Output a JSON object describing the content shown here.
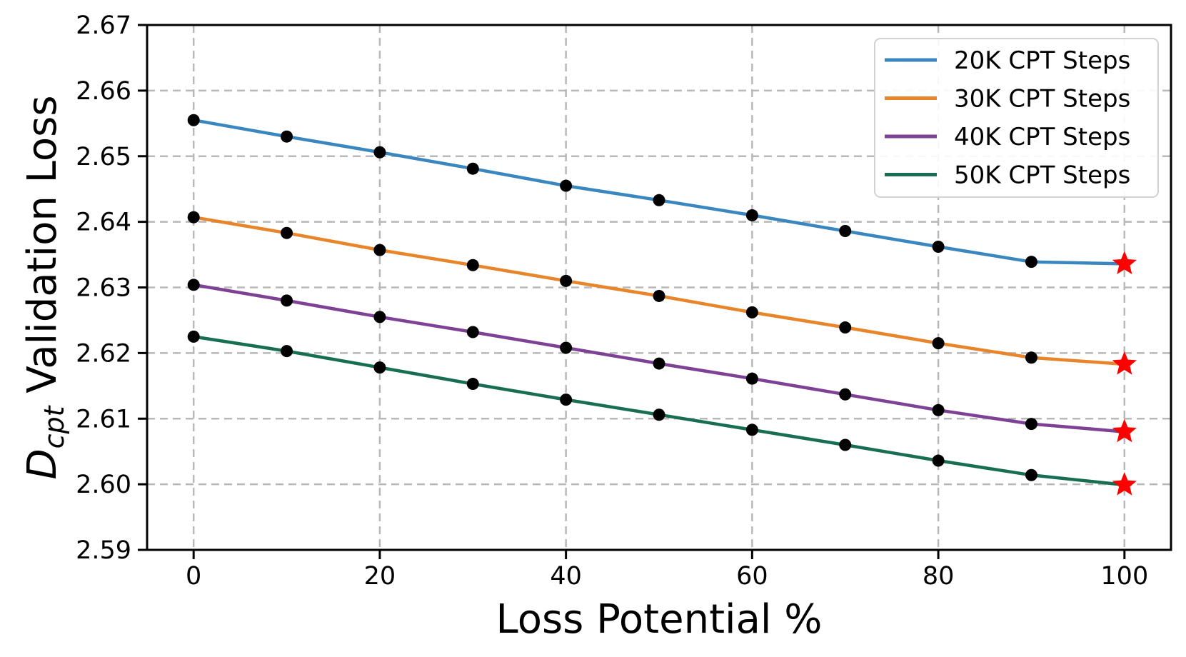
{
  "chart_data": {
    "type": "line",
    "title": "",
    "xlabel": "Loss Potential %",
    "ylabel": {
      "prefix": "D",
      "subscript": "cpt",
      "rest": " Validation Loss"
    },
    "x": [
      0,
      10,
      20,
      30,
      40,
      50,
      60,
      70,
      80,
      90,
      100
    ],
    "series": [
      {
        "name": "20K CPT Steps",
        "color": "#3a87c0",
        "values": [
          2.6555,
          2.653,
          2.6506,
          2.6481,
          2.6455,
          2.6433,
          2.641,
          2.6386,
          2.6362,
          2.6339,
          2.6336
        ]
      },
      {
        "name": "30K CPT Steps",
        "color": "#e88429",
        "values": [
          2.6407,
          2.6383,
          2.6357,
          2.6334,
          2.631,
          2.6287,
          2.6262,
          2.6239,
          2.6215,
          2.6193,
          2.6183
        ]
      },
      {
        "name": "40K CPT Steps",
        "color": "#7d4196",
        "values": [
          2.6304,
          2.628,
          2.6255,
          2.6232,
          2.6208,
          2.6184,
          2.6161,
          2.6137,
          2.6113,
          2.6092,
          2.608
        ]
      },
      {
        "name": "50K CPT Steps",
        "color": "#186e53",
        "values": [
          2.6225,
          2.6203,
          2.6178,
          2.6153,
          2.6129,
          2.6106,
          2.6083,
          2.606,
          2.6036,
          2.6014,
          2.5999
        ]
      }
    ],
    "point_marker": {
      "shape": "circle",
      "color": "#000000"
    },
    "final_marker": {
      "shape": "star",
      "color": "#ff0000",
      "at_x": 100
    },
    "xlim": [
      -5,
      105
    ],
    "ylim": [
      2.59,
      2.67
    ],
    "xticks": [
      0,
      20,
      40,
      60,
      80,
      100
    ],
    "yticks": [
      2.59,
      2.6,
      2.61,
      2.62,
      2.63,
      2.64,
      2.65,
      2.66,
      2.67
    ],
    "grid": true,
    "grid_color": "#b8b8b8",
    "legend": {
      "position": "top-right",
      "entries": [
        "20K CPT Steps",
        "30K CPT Steps",
        "40K CPT Steps",
        "50K CPT Steps"
      ]
    }
  }
}
